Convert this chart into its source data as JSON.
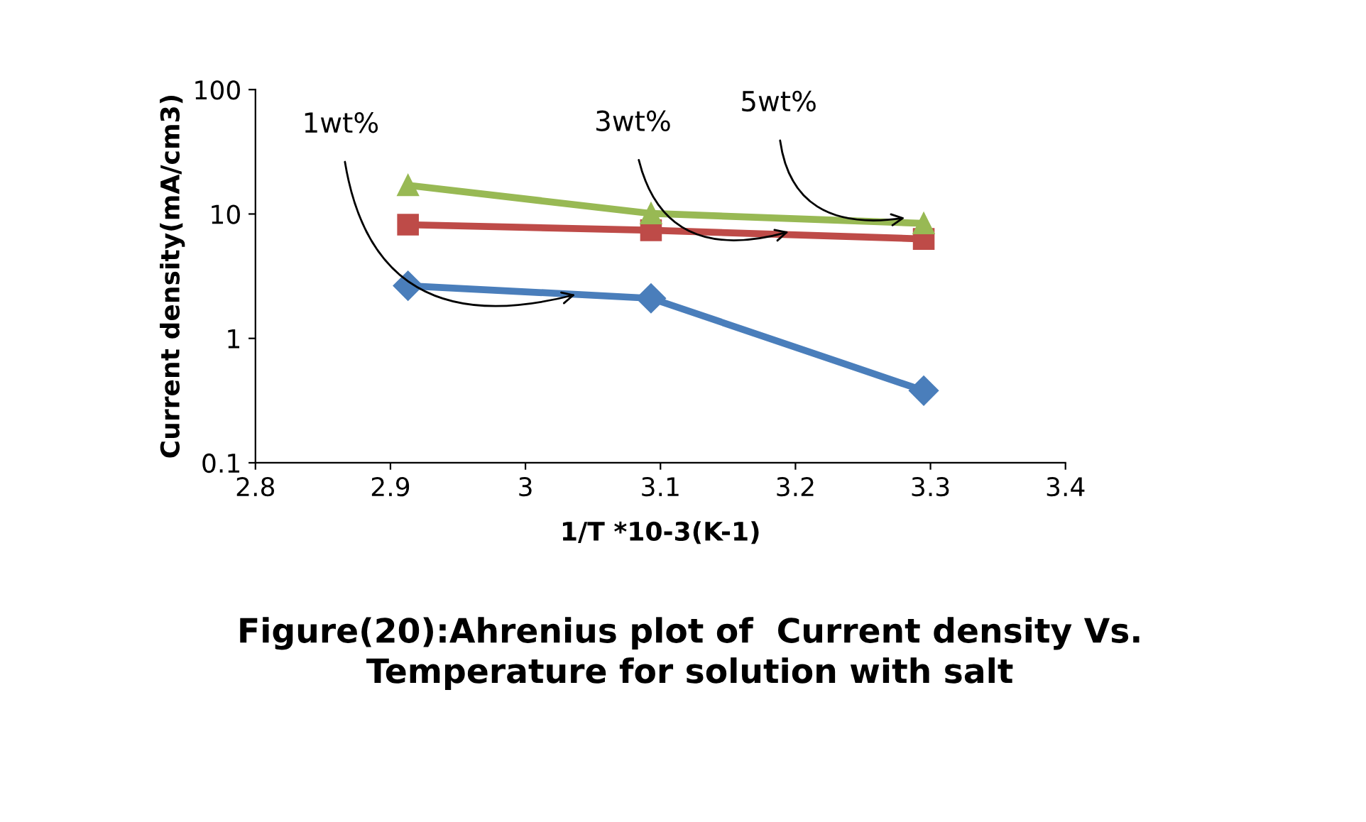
{
  "chart_data": {
    "type": "line",
    "title": "Figure(20):Ahrenius plot of  Current density Vs.\nTemperature for solution with salt",
    "xlabel": "1/T *10-3(K-1)",
    "ylabel": "Current density(mA/cm3)",
    "series": [
      {
        "color": "#4a7ebb",
        "marker": "diamond",
        "x": [
          2.913,
          3.093,
          3.295
        ],
        "values": [
          2.65,
          2.1,
          0.38
        ]
      },
      {
        "color": "#be4b48",
        "marker": "square",
        "x": [
          2.913,
          3.093,
          3.295
        ],
        "values": [
          8.2,
          7.4,
          6.3
        ]
      },
      {
        "color": "#98b954",
        "marker": "triangle",
        "x": [
          2.913,
          3.093,
          3.295
        ],
        "values": [
          17,
          10.1,
          8.4
        ]
      }
    ],
    "annotations": [
      {
        "text": "1wt%",
        "x": 3.037,
        "y": 2.25
      },
      {
        "text": "3wt%",
        "x": 3.195,
        "y": 7.2
      },
      {
        "text": "5wt%",
        "x": 3.281,
        "y": 9.3
      }
    ],
    "log": "y",
    "xlim": [
      2.8,
      3.4
    ],
    "xticks": [
      2.8,
      2.9,
      3,
      3.1,
      3.2,
      3.3,
      3.4
    ],
    "ylim": [
      0.1,
      100
    ],
    "yticks": [
      0.1,
      1,
      10,
      100
    ],
    "grid": false,
    "legend": false
  }
}
